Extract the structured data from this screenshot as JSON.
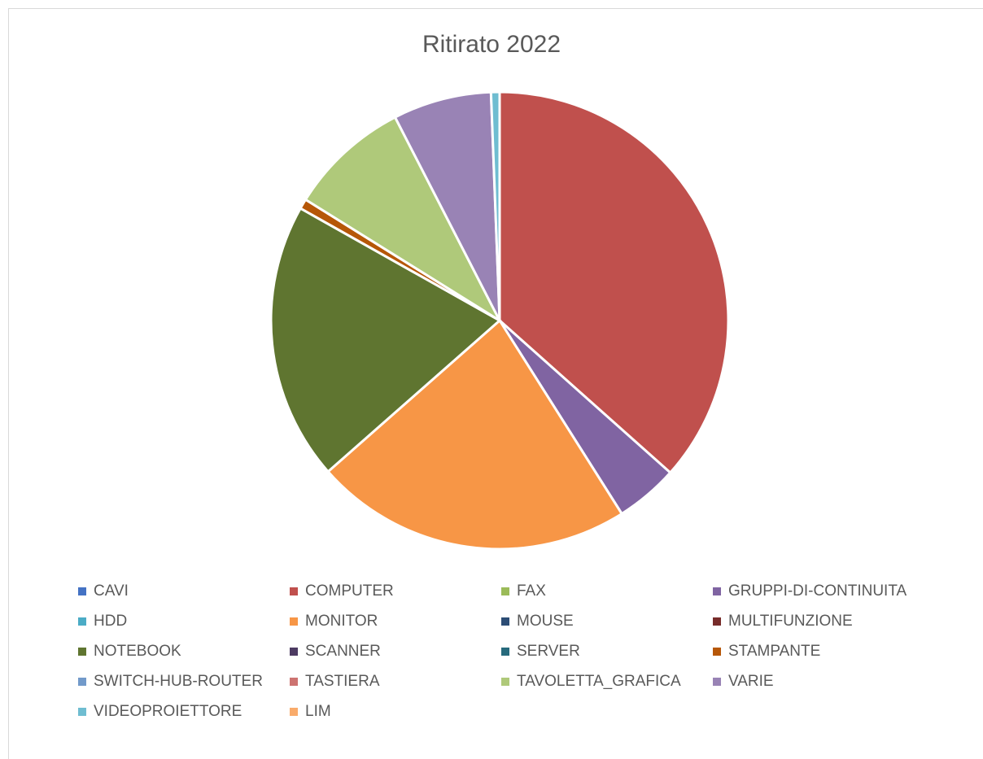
{
  "chart_data": {
    "type": "pie",
    "title": "Ritirato 2022",
    "legend_position": "bottom",
    "slices": [
      {
        "name": "CAVI",
        "value": 0.0,
        "color": "#4472C4"
      },
      {
        "name": "COMPUTER",
        "value": 36.3,
        "color": "#C0504D"
      },
      {
        "name": "FAX",
        "value": 0.0,
        "color": "#9BBB59"
      },
      {
        "name": "GRUPPI-DI-CONTINUITA",
        "value": 4.4,
        "color": "#8064A2"
      },
      {
        "name": "HDD",
        "value": 0.0,
        "color": "#4BACC6"
      },
      {
        "name": "MONITOR",
        "value": 22.3,
        "color": "#F79646"
      },
      {
        "name": "MOUSE",
        "value": 0.0,
        "color": "#2C4D75"
      },
      {
        "name": "MULTIFUNZIONE",
        "value": 0.0,
        "color": "#772C2A"
      },
      {
        "name": "NOTEBOOK",
        "value": 19.5,
        "color": "#5F7530"
      },
      {
        "name": "SCANNER",
        "value": 0.0,
        "color": "#4D3B62"
      },
      {
        "name": "SERVER",
        "value": 0.0,
        "color": "#276A7C"
      },
      {
        "name": "STAMPANTE",
        "value": 0.7,
        "color": "#B65708"
      },
      {
        "name": "SWITCH-HUB-ROUTER",
        "value": 0.0,
        "color": "#729ACA"
      },
      {
        "name": "TASTIERA",
        "value": 0.0,
        "color": "#CD7371"
      },
      {
        "name": "TAVOLETTA_GRAFICA",
        "value": 8.5,
        "color": "#AFC97A"
      },
      {
        "name": "VARIE",
        "value": 6.9,
        "color": "#9983B5"
      },
      {
        "name": "VIDEOPROIETTORE",
        "value": 0.6,
        "color": "#6FBDD1"
      },
      {
        "name": "LIM",
        "value": 0.0,
        "color": "#F9AB6B"
      }
    ]
  }
}
